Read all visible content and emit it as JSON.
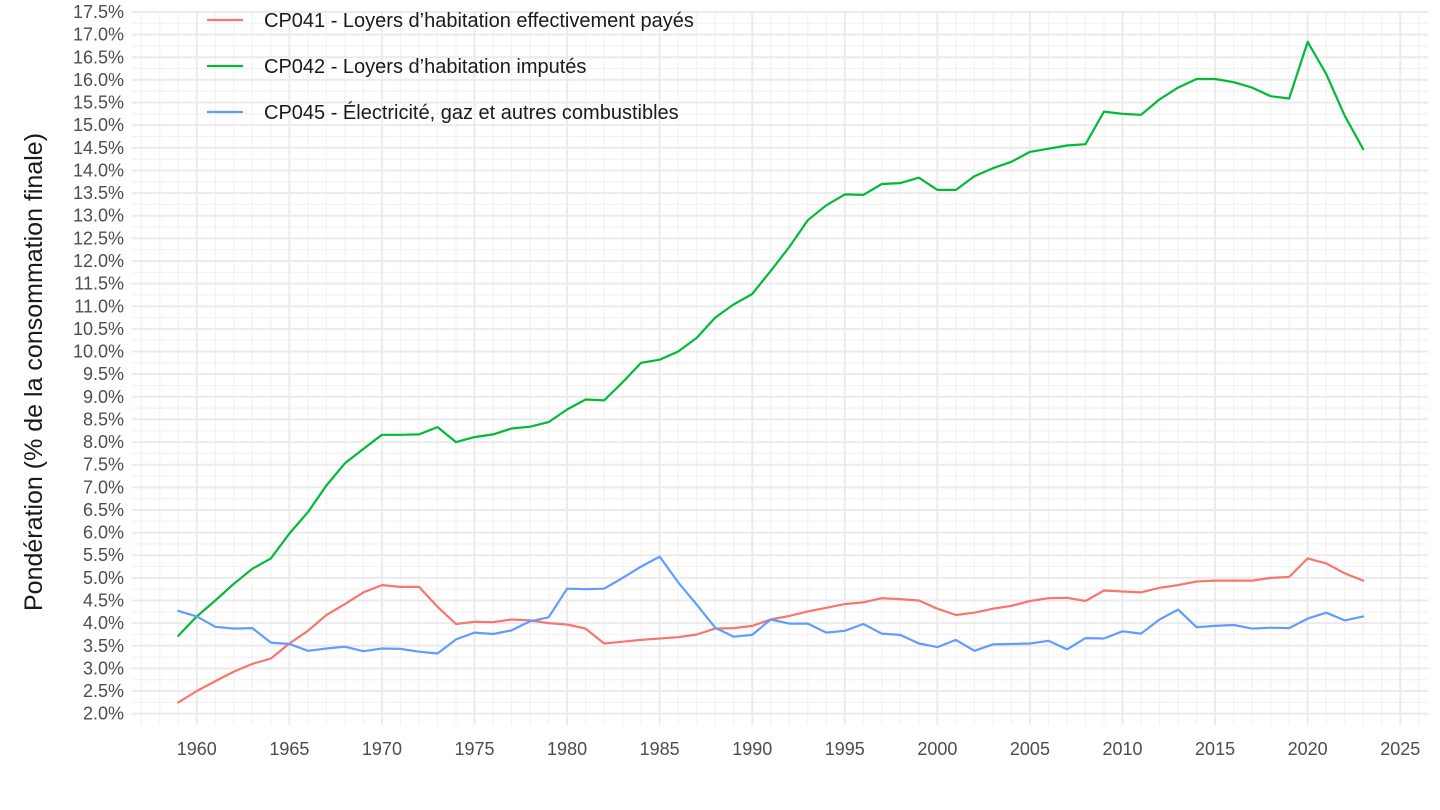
{
  "chart_data": {
    "type": "line",
    "ylabel": "Pondération (% de la consommation finale)",
    "xlabel": "",
    "title": "",
    "xlim": [
      1956.5,
      2026.5
    ],
    "ylim": [
      1.75,
      17.5
    ],
    "x_ticks": [
      1960,
      1965,
      1970,
      1975,
      1980,
      1985,
      1990,
      1995,
      2000,
      2005,
      2010,
      2015,
      2020,
      2025
    ],
    "y_ticks": [
      2.0,
      2.5,
      3.0,
      3.5,
      4.0,
      4.5,
      5.0,
      5.5,
      6.0,
      6.5,
      7.0,
      7.5,
      8.0,
      8.5,
      9.0,
      9.5,
      10.0,
      10.5,
      11.0,
      11.5,
      12.0,
      12.5,
      13.0,
      13.5,
      14.0,
      14.5,
      15.0,
      15.5,
      16.0,
      16.5,
      17.0,
      17.5
    ],
    "y_tick_labels": [
      "2.0%",
      "2.5%",
      "3.0%",
      "3.5%",
      "4.0%",
      "4.5%",
      "5.0%",
      "5.5%",
      "6.0%",
      "6.5%",
      "7.0%",
      "7.5%",
      "8.0%",
      "8.5%",
      "9.0%",
      "9.5%",
      "10.0%",
      "10.5%",
      "11.0%",
      "11.5%",
      "12.0%",
      "12.5%",
      "13.0%",
      "13.5%",
      "14.0%",
      "14.5%",
      "15.0%",
      "15.5%",
      "16.0%",
      "16.5%",
      "17.0%",
      "17.5%"
    ],
    "grid": true,
    "legend_position": "top-left",
    "x": [
      1959,
      1960,
      1961,
      1962,
      1963,
      1964,
      1965,
      1966,
      1967,
      1968,
      1969,
      1970,
      1971,
      1972,
      1973,
      1974,
      1975,
      1976,
      1977,
      1978,
      1979,
      1980,
      1981,
      1982,
      1983,
      1984,
      1985,
      1986,
      1987,
      1988,
      1989,
      1990,
      1991,
      1992,
      1993,
      1994,
      1995,
      1996,
      1997,
      1998,
      1999,
      2000,
      2001,
      2002,
      2003,
      2004,
      2005,
      2006,
      2007,
      2008,
      2009,
      2010,
      2011,
      2012,
      2013,
      2014,
      2015,
      2016,
      2017,
      2018,
      2019,
      2020,
      2021,
      2022,
      2023
    ],
    "series": [
      {
        "name": "CP041 - Loyers d’habitation effectivement payés",
        "color": "#F8766D",
        "values": [
          2.25,
          2.5,
          2.72,
          2.93,
          3.1,
          3.22,
          3.55,
          3.83,
          4.18,
          4.42,
          4.68,
          4.84,
          4.8,
          4.8,
          4.36,
          3.98,
          4.03,
          4.02,
          4.08,
          4.06,
          4.0,
          3.97,
          3.88,
          3.55,
          3.59,
          3.63,
          3.66,
          3.69,
          3.75,
          3.88,
          3.89,
          3.94,
          4.08,
          4.16,
          4.26,
          4.34,
          4.42,
          4.46,
          4.55,
          4.53,
          4.5,
          4.32,
          4.18,
          4.23,
          4.32,
          4.38,
          4.49,
          4.55,
          4.56,
          4.49,
          4.72,
          4.7,
          4.68,
          4.78,
          4.84,
          4.92,
          4.94,
          4.94,
          4.94,
          5.0,
          5.02,
          5.43,
          5.32,
          5.1,
          4.94
        ]
      },
      {
        "name": "CP042 - Loyers d’habitation imputés",
        "color": "#00BA38",
        "values": [
          3.72,
          4.15,
          4.5,
          4.87,
          5.2,
          5.43,
          5.98,
          6.45,
          7.04,
          7.53,
          7.85,
          8.16,
          8.16,
          8.17,
          8.33,
          8.0,
          8.11,
          8.17,
          8.3,
          8.34,
          8.44,
          8.72,
          8.94,
          8.92,
          9.32,
          9.75,
          9.82,
          10.0,
          10.3,
          10.75,
          11.04,
          11.27,
          11.78,
          12.31,
          12.9,
          13.23,
          13.47,
          13.46,
          13.7,
          13.72,
          13.84,
          13.57,
          13.57,
          13.87,
          14.05,
          14.19,
          14.41,
          14.48,
          14.55,
          14.58,
          15.3,
          15.25,
          15.23,
          15.57,
          15.83,
          16.02,
          16.02,
          15.95,
          15.83,
          15.64,
          15.59,
          16.84,
          16.13,
          15.21,
          14.47
        ]
      },
      {
        "name": "CP045 - Électricité, gaz et autres combustibles",
        "color": "#619CFF",
        "values": [
          4.27,
          4.15,
          3.92,
          3.88,
          3.89,
          3.57,
          3.54,
          3.39,
          3.44,
          3.48,
          3.38,
          3.44,
          3.43,
          3.37,
          3.33,
          3.64,
          3.79,
          3.76,
          3.84,
          4.04,
          4.13,
          4.76,
          4.75,
          4.76,
          5.0,
          5.25,
          5.47,
          4.9,
          4.41,
          3.9,
          3.7,
          3.74,
          4.08,
          3.99,
          3.99,
          3.79,
          3.83,
          3.98,
          3.77,
          3.74,
          3.55,
          3.47,
          3.63,
          3.39,
          3.53,
          3.54,
          3.55,
          3.61,
          3.42,
          3.67,
          3.66,
          3.82,
          3.77,
          4.08,
          4.3,
          3.91,
          3.94,
          3.96,
          3.88,
          3.9,
          3.89,
          4.1,
          4.23,
          4.06,
          4.15
        ]
      }
    ]
  }
}
